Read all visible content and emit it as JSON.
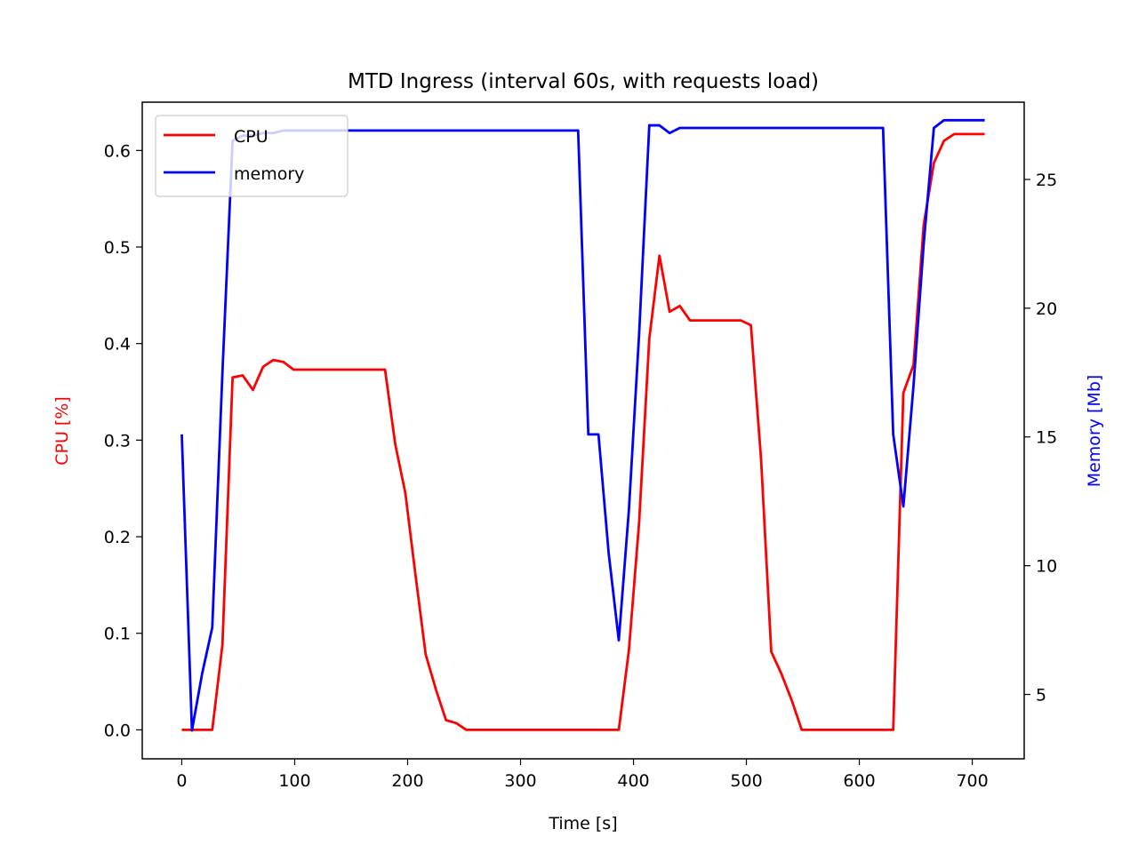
{
  "chart_data": {
    "type": "line",
    "title": "MTD Ingress (interval 60s, with requests load)",
    "xlabel": "Time [s]",
    "ylabel_left": "CPU [%]",
    "ylabel_right": "Memory [Mb]",
    "xlim": [
      -35,
      746
    ],
    "ylim_left": [
      -0.03,
      0.65
    ],
    "ylim_right": [
      2.5,
      28.0
    ],
    "xticks": [
      0,
      100,
      200,
      300,
      400,
      500,
      600,
      700
    ],
    "yticks_left": [
      0.0,
      0.1,
      0.2,
      0.3,
      0.4,
      0.5,
      0.6
    ],
    "yticks_right": [
      5,
      10,
      15,
      20,
      25
    ],
    "grid": false,
    "legend": "top-left",
    "colors": {
      "cpu": "#ff0000",
      "memory": "#0000ff"
    },
    "series": [
      {
        "name": "CPU",
        "axis": "left",
        "color": "#ff0000",
        "x": [
          0,
          9,
          18,
          27,
          36,
          45,
          54,
          63,
          72,
          81,
          90,
          99,
          108,
          117,
          126,
          135,
          144,
          153,
          162,
          171,
          180,
          189,
          198,
          207,
          216,
          225,
          234,
          243,
          252,
          261,
          270,
          279,
          288,
          297,
          306,
          315,
          324,
          333,
          342,
          351,
          360,
          369,
          378,
          387,
          396,
          405,
          414,
          423,
          432,
          441,
          450,
          459,
          468,
          477,
          486,
          495,
          504,
          513,
          522,
          531,
          540,
          549,
          558,
          567,
          576,
          585,
          594,
          603,
          612,
          621,
          630,
          639,
          648,
          657,
          666,
          675,
          684,
          693,
          702,
          711
        ],
        "values": [
          0,
          0,
          0,
          0,
          0.088,
          0.365,
          0.367,
          0.352,
          0.376,
          0.383,
          0.381,
          0.373,
          0.373,
          0.373,
          0.373,
          0.373,
          0.373,
          0.373,
          0.373,
          0.373,
          0.373,
          0.296,
          0.245,
          0.16,
          0.078,
          0.042,
          0.01,
          0.007,
          0,
          0,
          0,
          0,
          0,
          0,
          0,
          0,
          0,
          0,
          0,
          0,
          0,
          0,
          0,
          0,
          0.083,
          0.215,
          0.405,
          0.491,
          0.433,
          0.439,
          0.424,
          0.424,
          0.424,
          0.424,
          0.424,
          0.424,
          0.419,
          0.28,
          0.081,
          0.058,
          0.031,
          0,
          0,
          0,
          0,
          0,
          0,
          0,
          0,
          0,
          0,
          0.349,
          0.378,
          0.523,
          0.587,
          0.61,
          0.617,
          0.617,
          0.617,
          0.617
        ]
      },
      {
        "name": "memory",
        "axis": "right",
        "color": "#0000ff",
        "x": [
          0,
          9,
          18,
          27,
          36,
          45,
          54,
          63,
          72,
          81,
          90,
          99,
          108,
          117,
          126,
          135,
          144,
          153,
          162,
          171,
          180,
          189,
          198,
          207,
          216,
          225,
          234,
          243,
          252,
          261,
          270,
          279,
          288,
          297,
          306,
          315,
          324,
          333,
          342,
          351,
          360,
          369,
          378,
          387,
          396,
          405,
          414,
          423,
          432,
          441,
          450,
          459,
          468,
          477,
          486,
          495,
          504,
          513,
          522,
          531,
          540,
          549,
          558,
          567,
          576,
          585,
          594,
          603,
          612,
          621,
          630,
          639,
          648,
          657,
          666,
          675,
          684,
          693,
          702,
          711
        ],
        "values": [
          15.1,
          3.6,
          5.8,
          7.6,
          17.5,
          26.5,
          26.7,
          26.7,
          26.8,
          26.8,
          26.9,
          26.9,
          26.9,
          26.9,
          26.9,
          26.9,
          26.9,
          26.9,
          26.9,
          26.9,
          26.9,
          26.9,
          26.9,
          26.9,
          26.9,
          26.9,
          26.9,
          26.9,
          26.9,
          26.9,
          26.9,
          26.9,
          26.9,
          26.9,
          26.9,
          26.9,
          26.9,
          26.9,
          26.9,
          26.9,
          15.1,
          15.1,
          10.5,
          7.1,
          12.2,
          19.0,
          27.1,
          27.1,
          26.8,
          27.0,
          27.0,
          27.0,
          27.0,
          27.0,
          27.0,
          27.0,
          27.0,
          27.0,
          27.0,
          27.0,
          27.0,
          27.0,
          27.0,
          27.0,
          27.0,
          27.0,
          27.0,
          27.0,
          27.0,
          27.0,
          15.1,
          12.3,
          17.0,
          22.5,
          27.0,
          27.3,
          27.3,
          27.3,
          27.3,
          27.3
        ]
      }
    ]
  }
}
